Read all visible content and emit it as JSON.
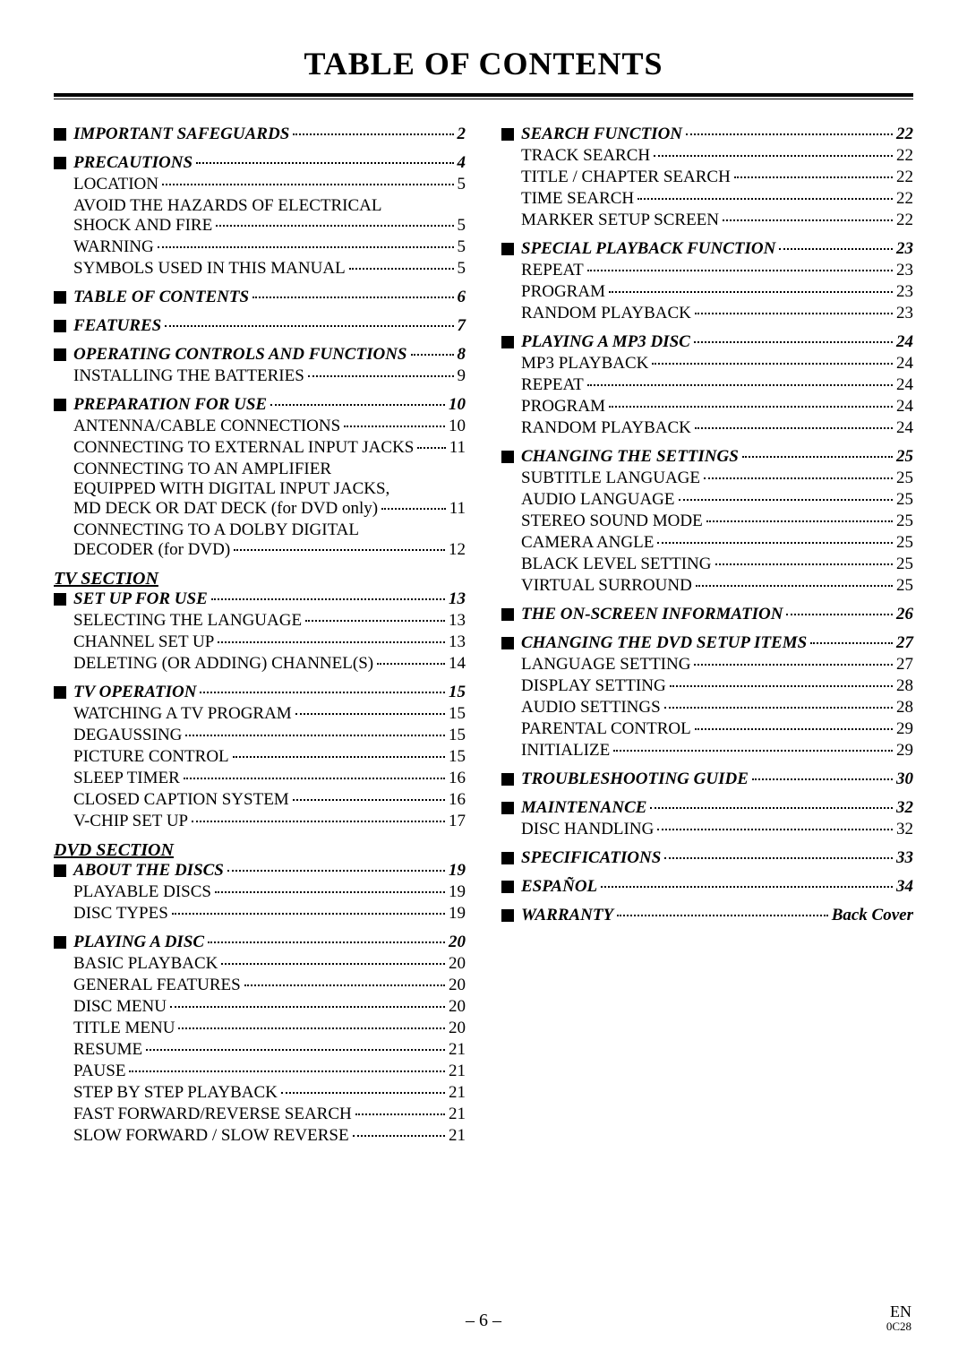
{
  "title": "TABLE OF CONTENTS",
  "pageNumber": "– 6 –",
  "footerRight": {
    "line1": "EN",
    "line2": "0C28"
  },
  "left": {
    "sections": [
      {
        "type": "chapter",
        "label": "IMPORTANT SAFEGUARDS",
        "page": "2"
      },
      {
        "type": "chapter",
        "label": "PRECAUTIONS",
        "page": "4"
      },
      {
        "type": "sub",
        "label": "LOCATION",
        "page": "5"
      },
      {
        "type": "sub-multi",
        "lines": [
          "AVOID THE HAZARDS OF ELECTRICAL"
        ],
        "last": "SHOCK AND FIRE",
        "page": "5"
      },
      {
        "type": "sub",
        "label": "WARNING",
        "page": "5"
      },
      {
        "type": "sub",
        "label": "SYMBOLS USED IN THIS MANUAL",
        "page": "5"
      },
      {
        "type": "chapter",
        "label": "TABLE OF CONTENTS",
        "page": "6"
      },
      {
        "type": "chapter",
        "label": "FEATURES",
        "page": "7"
      },
      {
        "type": "chapter",
        "label": "OPERATING CONTROLS AND FUNCTIONS",
        "page": "8"
      },
      {
        "type": "sub",
        "label": "INSTALLING THE BATTERIES",
        "page": "9"
      },
      {
        "type": "chapter",
        "label": "PREPARATION FOR USE",
        "page": "10"
      },
      {
        "type": "sub",
        "label": "ANTENNA/CABLE CONNECTIONS",
        "page": "10"
      },
      {
        "type": "sub",
        "label": "CONNECTING TO EXTERNAL INPUT JACKS",
        "page": "11"
      },
      {
        "type": "sub-multi",
        "lines": [
          "CONNECTING TO AN AMPLIFIER",
          "EQUIPPED WITH DIGITAL INPUT JACKS,"
        ],
        "last": "MD DECK OR DAT DECK (for DVD only)",
        "page": "11"
      },
      {
        "type": "sub-multi",
        "lines": [
          "CONNECTING TO A DOLBY DIGITAL"
        ],
        "last": "DECODER (for DVD)",
        "page": "12"
      },
      {
        "type": "section-hdr",
        "label": "TV SECTION"
      },
      {
        "type": "chapter-tight",
        "label": "SET UP FOR USE",
        "page": "13"
      },
      {
        "type": "sub",
        "label": "SELECTING THE LANGUAGE",
        "page": "13"
      },
      {
        "type": "sub",
        "label": "CHANNEL SET UP",
        "page": "13"
      },
      {
        "type": "sub",
        "label": "DELETING (OR ADDING) CHANNEL(S)",
        "page": "14"
      },
      {
        "type": "chapter",
        "label": "TV OPERATION",
        "page": "15"
      },
      {
        "type": "sub",
        "label": "WATCHING A TV PROGRAM",
        "page": "15"
      },
      {
        "type": "sub",
        "label": "DEGAUSSING",
        "page": "15"
      },
      {
        "type": "sub",
        "label": "PICTURE CONTROL",
        "page": "15"
      },
      {
        "type": "sub",
        "label": "SLEEP TIMER",
        "page": "16"
      },
      {
        "type": "sub",
        "label": "CLOSED CAPTION SYSTEM",
        "page": "16"
      },
      {
        "type": "sub",
        "label": "V-CHIP SET UP",
        "page": "17"
      },
      {
        "type": "section-hdr",
        "label": "DVD SECTION"
      },
      {
        "type": "chapter-tight",
        "label": "ABOUT THE DISCS",
        "page": "19"
      },
      {
        "type": "sub",
        "label": "PLAYABLE DISCS",
        "page": "19"
      },
      {
        "type": "sub",
        "label": "DISC TYPES",
        "page": "19"
      },
      {
        "type": "chapter",
        "label": "PLAYING A DISC",
        "page": "20"
      },
      {
        "type": "sub",
        "label": "BASIC PLAYBACK",
        "page": "20"
      },
      {
        "type": "sub",
        "label": "GENERAL FEATURES",
        "page": "20"
      },
      {
        "type": "sub",
        "label": "DISC MENU",
        "page": "20"
      },
      {
        "type": "sub",
        "label": "TITLE MENU",
        "page": "20"
      },
      {
        "type": "sub",
        "label": "RESUME",
        "page": "21"
      },
      {
        "type": "sub",
        "label": "PAUSE",
        "page": "21"
      },
      {
        "type": "sub",
        "label": "STEP BY STEP PLAYBACK",
        "page": "21"
      },
      {
        "type": "sub",
        "label": "FAST FORWARD/REVERSE SEARCH",
        "page": "21"
      },
      {
        "type": "sub",
        "label": "SLOW FORWARD / SLOW REVERSE",
        "page": "21"
      }
    ]
  },
  "right": {
    "sections": [
      {
        "type": "chapter",
        "label": "SEARCH FUNCTION",
        "page": "22"
      },
      {
        "type": "sub",
        "label": "TRACK SEARCH",
        "page": "22"
      },
      {
        "type": "sub",
        "label": "TITLE / CHAPTER SEARCH",
        "page": "22"
      },
      {
        "type": "sub",
        "label": "TIME SEARCH",
        "page": "22"
      },
      {
        "type": "sub",
        "label": "MARKER SETUP SCREEN",
        "page": "22"
      },
      {
        "type": "chapter",
        "label": "SPECIAL PLAYBACK FUNCTION",
        "page": "23"
      },
      {
        "type": "sub",
        "label": "REPEAT",
        "page": "23"
      },
      {
        "type": "sub",
        "label": "PROGRAM",
        "page": "23"
      },
      {
        "type": "sub",
        "label": "RANDOM PLAYBACK",
        "page": "23"
      },
      {
        "type": "chapter",
        "label": "PLAYING A MP3 DISC",
        "page": "24"
      },
      {
        "type": "sub",
        "label": "MP3 PLAYBACK",
        "page": "24"
      },
      {
        "type": "sub",
        "label": "REPEAT",
        "page": "24"
      },
      {
        "type": "sub",
        "label": "PROGRAM",
        "page": "24"
      },
      {
        "type": "sub",
        "label": "RANDOM PLAYBACK",
        "page": "24"
      },
      {
        "type": "chapter",
        "label": "CHANGING THE SETTINGS",
        "page": "25"
      },
      {
        "type": "sub",
        "label": "SUBTITLE LANGUAGE",
        "page": "25"
      },
      {
        "type": "sub",
        "label": "AUDIO LANGUAGE",
        "page": "25"
      },
      {
        "type": "sub",
        "label": "STEREO SOUND MODE",
        "page": "25"
      },
      {
        "type": "sub",
        "label": "CAMERA ANGLE",
        "page": "25"
      },
      {
        "type": "sub",
        "label": "BLACK LEVEL SETTING",
        "page": "25"
      },
      {
        "type": "sub",
        "label": "VIRTUAL SURROUND",
        "page": "25"
      },
      {
        "type": "chapter",
        "label": "THE ON-SCREEN INFORMATION",
        "page": "26"
      },
      {
        "type": "chapter",
        "label": "CHANGING THE DVD SETUP ITEMS",
        "page": "27"
      },
      {
        "type": "sub",
        "label": "LANGUAGE SETTING",
        "page": "27"
      },
      {
        "type": "sub",
        "label": "DISPLAY SETTING",
        "page": "28"
      },
      {
        "type": "sub",
        "label": "AUDIO SETTINGS",
        "page": "28"
      },
      {
        "type": "sub",
        "label": "PARENTAL CONTROL",
        "page": "29"
      },
      {
        "type": "sub",
        "label": "INITIALIZE",
        "page": "29"
      },
      {
        "type": "chapter",
        "label": "TROUBLESHOOTING GUIDE",
        "page": "30"
      },
      {
        "type": "chapter",
        "label": "MAINTENANCE",
        "page": "32"
      },
      {
        "type": "sub",
        "label": "DISC HANDLING",
        "page": "32"
      },
      {
        "type": "chapter",
        "label": "SPECIFICATIONS",
        "page": "33"
      },
      {
        "type": "chapter",
        "label": "ESPAÑOL",
        "page": "34"
      },
      {
        "type": "chapter",
        "label": "WARRANTY",
        "page": "Back Cover"
      }
    ]
  }
}
